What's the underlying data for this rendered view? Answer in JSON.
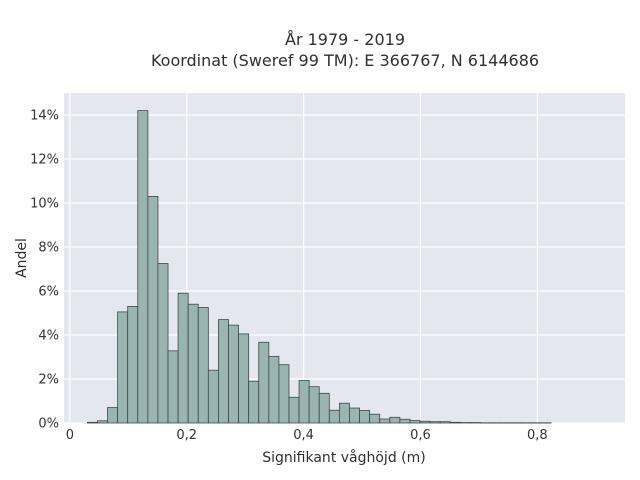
{
  "chart_data": {
    "type": "bar",
    "title_line1": "År 1979 - 2019",
    "title_line2": "Koordinat (Sweref 99 TM): E 366767, N 6144686",
    "xlabel": "Signifikant våghöjd (m)",
    "ylabel": "Andel",
    "xlim": [
      -0.01,
      0.95
    ],
    "ylim": [
      0,
      0.15
    ],
    "x_ticks": [
      0,
      0.2,
      0.4,
      0.6,
      0.8
    ],
    "x_tick_labels": [
      "0",
      "0,2",
      "0,4",
      "0,6",
      "0,8"
    ],
    "y_ticks": [
      0,
      0.02,
      0.04,
      0.06,
      0.08,
      0.1,
      0.12,
      0.14
    ],
    "y_tick_labels": [
      "0%",
      "2%",
      "4%",
      "6%",
      "8%",
      "10%",
      "12%",
      "14%"
    ],
    "grid": true,
    "bin_width": 0.01725,
    "bin_start": 0.03,
    "values": [
      0.0003,
      0.001,
      0.007,
      0.0505,
      0.053,
      0.142,
      0.103,
      0.0725,
      0.0328,
      0.059,
      0.054,
      0.0525,
      0.024,
      0.047,
      0.0445,
      0.0405,
      0.019,
      0.0367,
      0.0303,
      0.0265,
      0.0117,
      0.0193,
      0.0165,
      0.0135,
      0.0058,
      0.009,
      0.0068,
      0.0057,
      0.004,
      0.0018,
      0.0026,
      0.0017,
      0.0011,
      0.0008,
      0.0006,
      0.0006,
      0.0003,
      0.0002,
      0.0002,
      0.0001,
      0.0001,
      0.0001,
      0.0001,
      0.0001,
      0.0001,
      0.0001
    ],
    "colors": {
      "plot_bg": "#e5e7f0",
      "grid": "#ffffff",
      "bar_fill": "#9ab4b2",
      "bar_edge": "#3a4a48"
    }
  }
}
